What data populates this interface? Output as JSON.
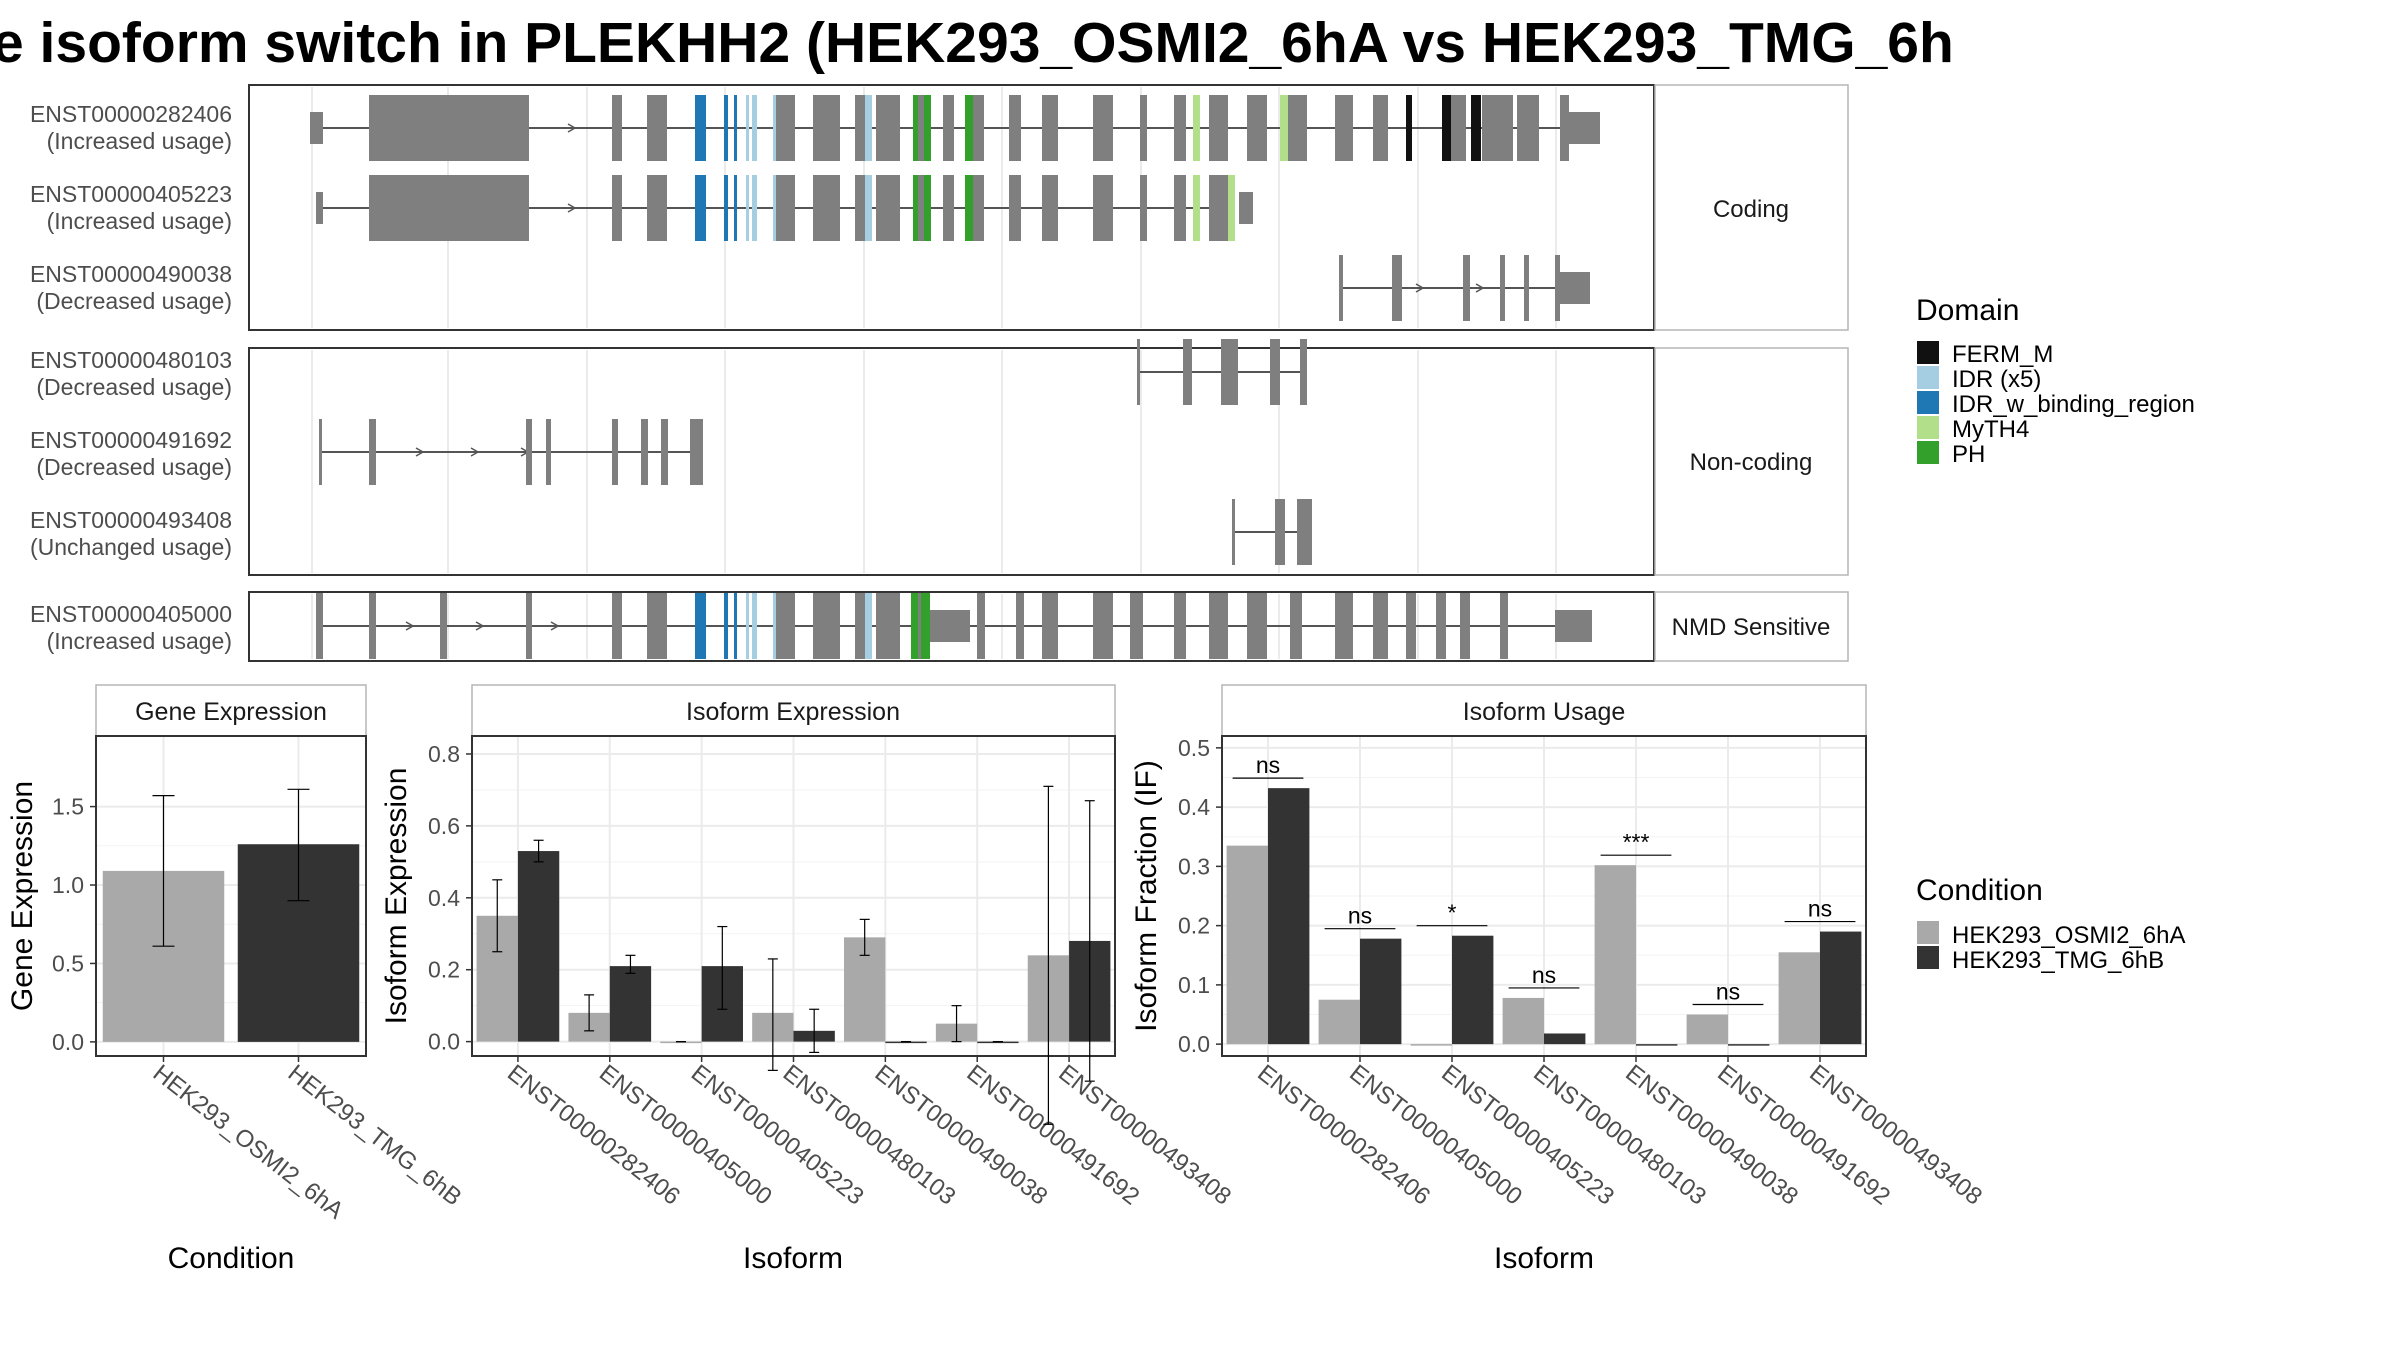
{
  "title": "e isoform switch in PLEKHH2 (HEK293_OSMI2_6hA vs HEK293_TMG_6h",
  "facets": {
    "coding": "Coding",
    "noncoding": "Non-coding",
    "nmd": "NMD Sensitive"
  },
  "transcripts": [
    {
      "id": "ENST00000282406",
      "usage": "(Increased usage)",
      "facet": "coding"
    },
    {
      "id": "ENST00000405223",
      "usage": "(Increased usage)",
      "facet": "coding"
    },
    {
      "id": "ENST00000490038",
      "usage": "(Decreased usage)",
      "facet": "coding"
    },
    {
      "id": "ENST00000480103",
      "usage": "(Decreased usage)",
      "facet": "noncoding"
    },
    {
      "id": "ENST00000491692",
      "usage": "(Decreased usage)",
      "facet": "noncoding"
    },
    {
      "id": "ENST00000493408",
      "usage": "(Unchanged usage)",
      "facet": "noncoding"
    },
    {
      "id": "ENST00000405000",
      "usage": "(Increased usage)",
      "facet": "nmd"
    }
  ],
  "domain_legend": {
    "title": "Domain",
    "items": [
      {
        "label": "FERM_M",
        "color": "#111111"
      },
      {
        "label": "IDR (x5)",
        "color": "#a6cee3"
      },
      {
        "label": "IDR_w_binding_region",
        "color": "#1f78b4"
      },
      {
        "label": "MyTH4",
        "color": "#b2df8a"
      },
      {
        "label": "PH",
        "color": "#33a02c"
      }
    ]
  },
  "condition_legend": {
    "title": "Condition",
    "items": [
      {
        "label": "HEK293_OSMI2_6hA",
        "color": "#a9a9a9"
      },
      {
        "label": "HEK293_TMG_6hB",
        "color": "#333333"
      }
    ]
  },
  "colors": {
    "exon": "#7f7f7f",
    "panel_border": "#333333",
    "strip_border": "#b5b5b5",
    "grid": "#ebebeb"
  },
  "chart_data": [
    {
      "type": "bar",
      "title": "Gene Expression",
      "xlabel": "Condition",
      "ylabel": "Gene Expression",
      "categories": [
        "HEK293_OSMI2_6hA",
        "HEK293_TMG_6hB"
      ],
      "values": [
        1.09,
        1.26
      ],
      "error_low": [
        0.61,
        0.9
      ],
      "error_high": [
        1.57,
        1.61
      ],
      "colors": [
        "#a9a9a9",
        "#333333"
      ],
      "yticks": [
        0.0,
        0.5,
        1.0,
        1.5
      ],
      "ylim": [
        -0.09,
        1.95
      ]
    },
    {
      "type": "bar",
      "title": "Isoform Expression",
      "xlabel": "Isoform",
      "ylabel": "Isoform Expression",
      "categories": [
        "ENST00000282406",
        "ENST00000405000",
        "ENST00000405223",
        "ENST00000480103",
        "ENST00000490038",
        "ENST00000491692",
        "ENST00000493408"
      ],
      "series": [
        {
          "name": "HEK293_OSMI2_6hA",
          "values": [
            0.35,
            0.08,
            0.0,
            0.08,
            0.29,
            0.05,
            0.24
          ],
          "error_low": [
            0.25,
            0.03,
            0.0,
            -0.08,
            0.24,
            0.0,
            -0.23
          ],
          "error_high": [
            0.45,
            0.13,
            0.0,
            0.23,
            0.34,
            0.1,
            0.71
          ]
        },
        {
          "name": "HEK293_TMG_6hB",
          "values": [
            0.53,
            0.21,
            0.21,
            0.03,
            0.0,
            0.0,
            0.28
          ],
          "error_low": [
            0.5,
            0.19,
            0.09,
            -0.03,
            0.0,
            0.0,
            -0.11
          ],
          "error_high": [
            0.56,
            0.24,
            0.32,
            0.09,
            0.0,
            0.0,
            0.67
          ]
        }
      ],
      "yticks": [
        0.0,
        0.2,
        0.4,
        0.6,
        0.8
      ],
      "ylim": [
        -0.04,
        0.85
      ]
    },
    {
      "type": "bar",
      "title": "Isoform Usage",
      "xlabel": "Isoform",
      "ylabel": "Isoform Fraction (IF)",
      "categories": [
        "ENST00000282406",
        "ENST00000405000",
        "ENST00000405223",
        "ENST00000480103",
        "ENST00000490038",
        "ENST00000491692",
        "ENST00000493408"
      ],
      "series": [
        {
          "name": "HEK293_OSMI2_6hA",
          "values": [
            0.335,
            0.075,
            0.0,
            0.078,
            0.302,
            0.05,
            0.155
          ]
        },
        {
          "name": "HEK293_TMG_6hB",
          "values": [
            0.432,
            0.178,
            0.183,
            0.018,
            0.0,
            0.0,
            0.19
          ]
        }
      ],
      "significance": [
        "ns",
        "ns",
        "*",
        "ns",
        "***",
        "ns",
        "ns"
      ],
      "yticks": [
        0.0,
        0.1,
        0.2,
        0.3,
        0.4,
        0.5
      ],
      "ylim": [
        -0.02,
        0.52
      ]
    }
  ]
}
